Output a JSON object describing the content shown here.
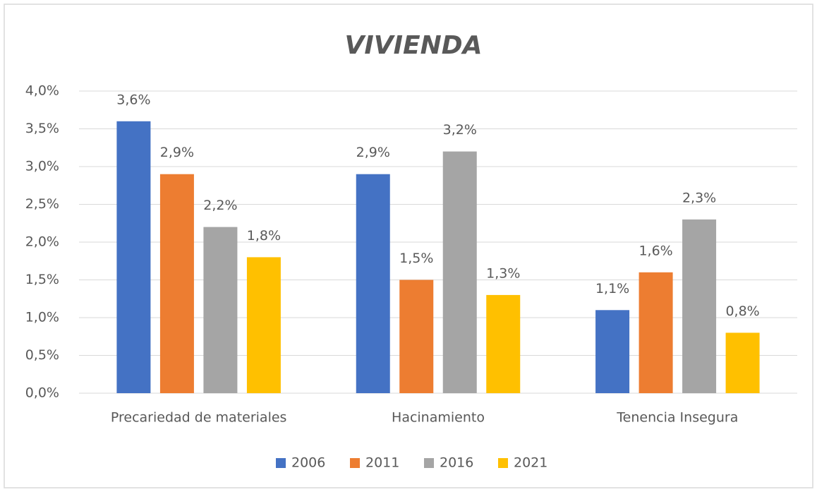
{
  "chart_data": {
    "type": "bar",
    "title": "VIVIENDA",
    "categories": [
      "Precariedad de materiales",
      "Hacinamiento",
      "Tenencia Insegura"
    ],
    "series": [
      {
        "name": "2006",
        "color": "#4472c4",
        "values": [
          3.6,
          2.9,
          1.1
        ],
        "value_labels": [
          "3,6%",
          "2,9%",
          "1,1%"
        ]
      },
      {
        "name": "2011",
        "color": "#ed7d31",
        "values": [
          2.9,
          1.5,
          1.6
        ],
        "value_labels": [
          "2,9%",
          "1,5%",
          "1,6%"
        ]
      },
      {
        "name": "2016",
        "color": "#a5a5a5",
        "values": [
          2.2,
          3.2,
          2.3
        ],
        "value_labels": [
          "2,2%",
          "3,2%",
          "2,3%"
        ]
      },
      {
        "name": "2021",
        "color": "#ffc000",
        "values": [
          1.8,
          1.3,
          0.8
        ],
        "value_labels": [
          "1,8%",
          "1,3%",
          "0,8%"
        ]
      }
    ],
    "ylim": [
      0,
      4
    ],
    "yticks": [
      {
        "value": 0,
        "label": "0,0%"
      },
      {
        "value": 0.5,
        "label": "0,5%"
      },
      {
        "value": 1,
        "label": "1,0%"
      },
      {
        "value": 1.5,
        "label": "1,5%"
      },
      {
        "value": 2,
        "label": "2,0%"
      },
      {
        "value": 2.5,
        "label": "2,5%"
      },
      {
        "value": 3,
        "label": "3,0%"
      },
      {
        "value": 3.5,
        "label": "3,5%"
      },
      {
        "value": 4,
        "label": "4,0%"
      }
    ],
    "grid": true,
    "legend": "bottom"
  }
}
